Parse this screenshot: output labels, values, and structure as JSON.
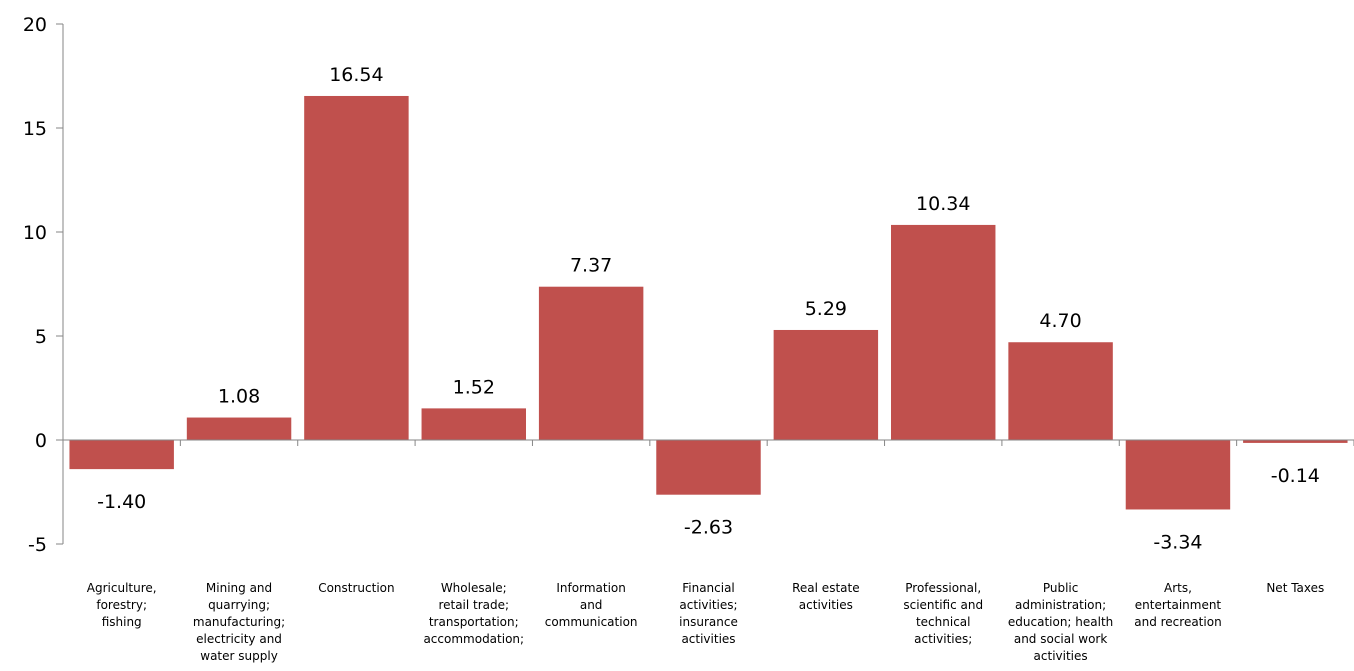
{
  "chart_data": {
    "type": "bar",
    "title": "",
    "xlabel": "",
    "ylabel": "",
    "ylim": [
      -5,
      20
    ],
    "yticks": [
      -5,
      0,
      5,
      10,
      15,
      20
    ],
    "ytick_labels": [
      "-5",
      "0",
      "5",
      "10",
      "15",
      "20"
    ],
    "grid": false,
    "legend": "none",
    "bar_color": "#c0504d",
    "categories": [
      "Agriculture, forestry; fishing",
      "Mining and quarrying; manufacturing; electricity and water supply",
      "Construction",
      "Wholesale; retail trade; transportation; accommodation;",
      "Information and communication",
      "Financial activities; insurance activities",
      "Real estate activities",
      "Professional, scientific and technical activities;",
      "Public administration; education; health and social work activities",
      "Arts, entertainment and recreation",
      "Net Taxes"
    ],
    "category_lines": [
      [
        "Agriculture,",
        "forestry;",
        "fishing"
      ],
      [
        "Mining and",
        "quarrying;",
        "manufacturing;",
        "electricity and",
        "water supply"
      ],
      [
        "Construction"
      ],
      [
        "Wholesale;",
        "retail trade;",
        "transportation;",
        "accommodation;"
      ],
      [
        "Information",
        "and",
        "communication"
      ],
      [
        "Financial",
        "activities;",
        "insurance",
        "activities"
      ],
      [
        "Real estate",
        "activities"
      ],
      [
        "Professional,",
        "scientific and",
        "technical",
        "activities;"
      ],
      [
        "Public",
        "administration;",
        "education; health",
        "and social work",
        "activities"
      ],
      [
        "Arts,",
        "entertainment",
        "and recreation"
      ],
      [
        "Net Taxes"
      ]
    ],
    "values": [
      -1.4,
      1.08,
      16.54,
      1.52,
      7.37,
      -2.63,
      5.29,
      10.34,
      4.7,
      -3.34,
      -0.14
    ],
    "data_labels": [
      "-1.40",
      "1.08",
      "16.54",
      "1.52",
      "7.37",
      "-2.63",
      "5.29",
      "10.34",
      "4.70",
      "-3.34",
      "-0.14"
    ]
  }
}
